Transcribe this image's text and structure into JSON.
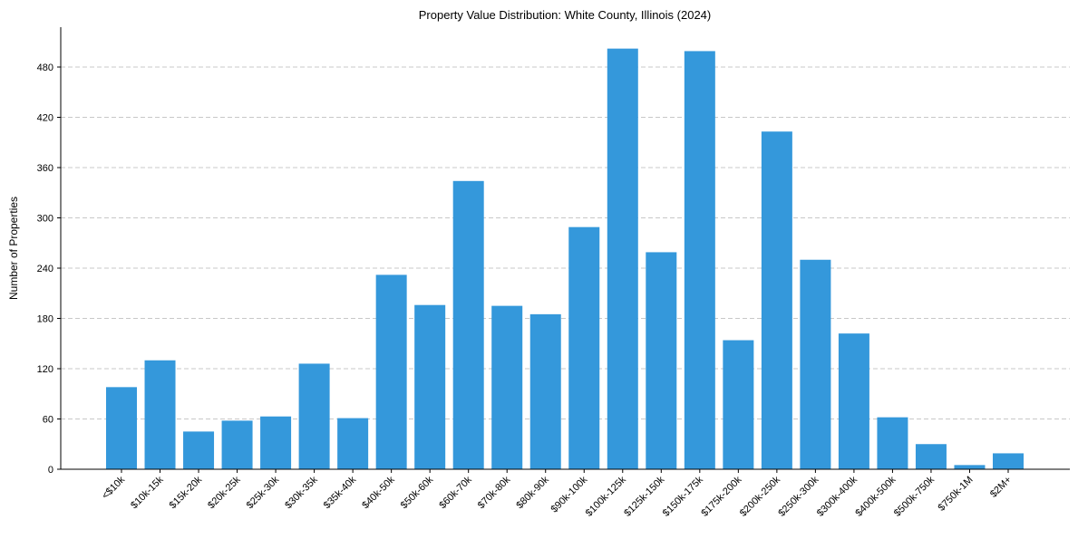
{
  "chart_data": {
    "type": "bar",
    "title": "Property Value Distribution: White County, Illinois (2024)",
    "xlabel": "",
    "ylabel": "Number of Properties",
    "ylim": [
      0,
      525
    ],
    "yticks": [
      0,
      60,
      120,
      180,
      240,
      300,
      360,
      420,
      480
    ],
    "grid": "y-dashed",
    "bar_color": "#3498db",
    "categories": [
      "<$10k",
      "$10k-15k",
      "$15k-20k",
      "$20k-25k",
      "$25k-30k",
      "$30k-35k",
      "$35k-40k",
      "$40k-50k",
      "$50k-60k",
      "$60k-70k",
      "$70k-80k",
      "$80k-90k",
      "$90k-100k",
      "$100k-125k",
      "$125k-150k",
      "$150k-175k",
      "$175k-200k",
      "$200k-250k",
      "$250k-300k",
      "$300k-400k",
      "$400k-500k",
      "$500k-750k",
      "$750k-1M",
      "$2M+"
    ],
    "values": [
      98,
      130,
      45,
      58,
      63,
      126,
      61,
      232,
      196,
      344,
      195,
      185,
      289,
      502,
      259,
      499,
      154,
      403,
      250,
      162,
      62,
      30,
      5,
      19
    ]
  }
}
